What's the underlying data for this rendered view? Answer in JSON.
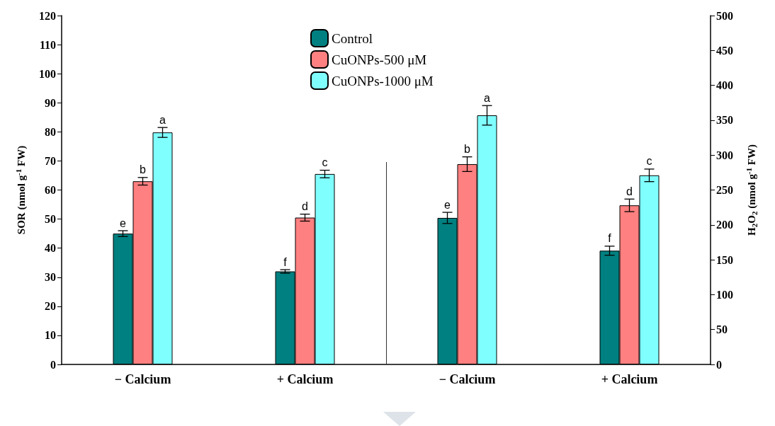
{
  "chart_data": {
    "type": "bar",
    "categories": [
      "− Calcium",
      "+ Calcium",
      "− Calcium",
      "+ Calcium"
    ],
    "ylabel": "SOR (nmol g$^{-1}$ FW)",
    "y2label": "H$_{2}$O$_{2}$ (nmol g$^{-1}$ FW)",
    "ylim": [
      0,
      120
    ],
    "yticks": [
      0,
      10,
      20,
      30,
      40,
      50,
      60,
      70,
      80,
      90,
      100,
      110,
      120
    ],
    "y2lim": [
      0,
      500
    ],
    "y2ticks": [
      0,
      50,
      100,
      150,
      200,
      250,
      300,
      350,
      400,
      450,
      500
    ],
    "legend": "top",
    "grid": false,
    "series": [
      {
        "name": "Control",
        "color": "#008080",
        "values": [
          45,
          32,
          null,
          null
        ],
        "errors": [
          1,
          0.6,
          null,
          null
        ],
        "value_labels": [
          "e",
          "f",
          null,
          null
        ]
      },
      {
        "name": "CuONPs-500 μM",
        "color": "#ff8080",
        "values": [
          63,
          50.5,
          null,
          null
        ],
        "errors": [
          1.3,
          1.2,
          null,
          null
        ],
        "value_labels": [
          "b",
          "d",
          null,
          null
        ]
      },
      {
        "name": "CuONPs-1000 μM",
        "color": "#80ffff",
        "values": [
          79.8,
          65.5,
          null,
          null
        ],
        "errors": [
          1.7,
          1.3,
          null,
          null
        ],
        "value_labels": [
          "a",
          "c",
          null,
          null
        ]
      },
      {
        "color": "#008080",
        "axis": "y2",
        "values": [
          null,
          null,
          210,
          163
        ],
        "errors": [
          null,
          null,
          8,
          6.5
        ],
        "value_labels": [
          null,
          null,
          "e",
          "f"
        ]
      },
      {
        "color": "#ff8080",
        "axis": "y2",
        "values": [
          null,
          null,
          287,
          228
        ],
        "errors": [
          null,
          null,
          10.5,
          9
        ],
        "value_labels": [
          null,
          null,
          "b",
          "d"
        ]
      },
      {
        "color": "#80ffff",
        "axis": "y2",
        "values": [
          null,
          null,
          357,
          271
        ],
        "errors": [
          null,
          null,
          14,
          9
        ],
        "value_labels": [
          null,
          null,
          "a",
          "c"
        ]
      }
    ]
  }
}
